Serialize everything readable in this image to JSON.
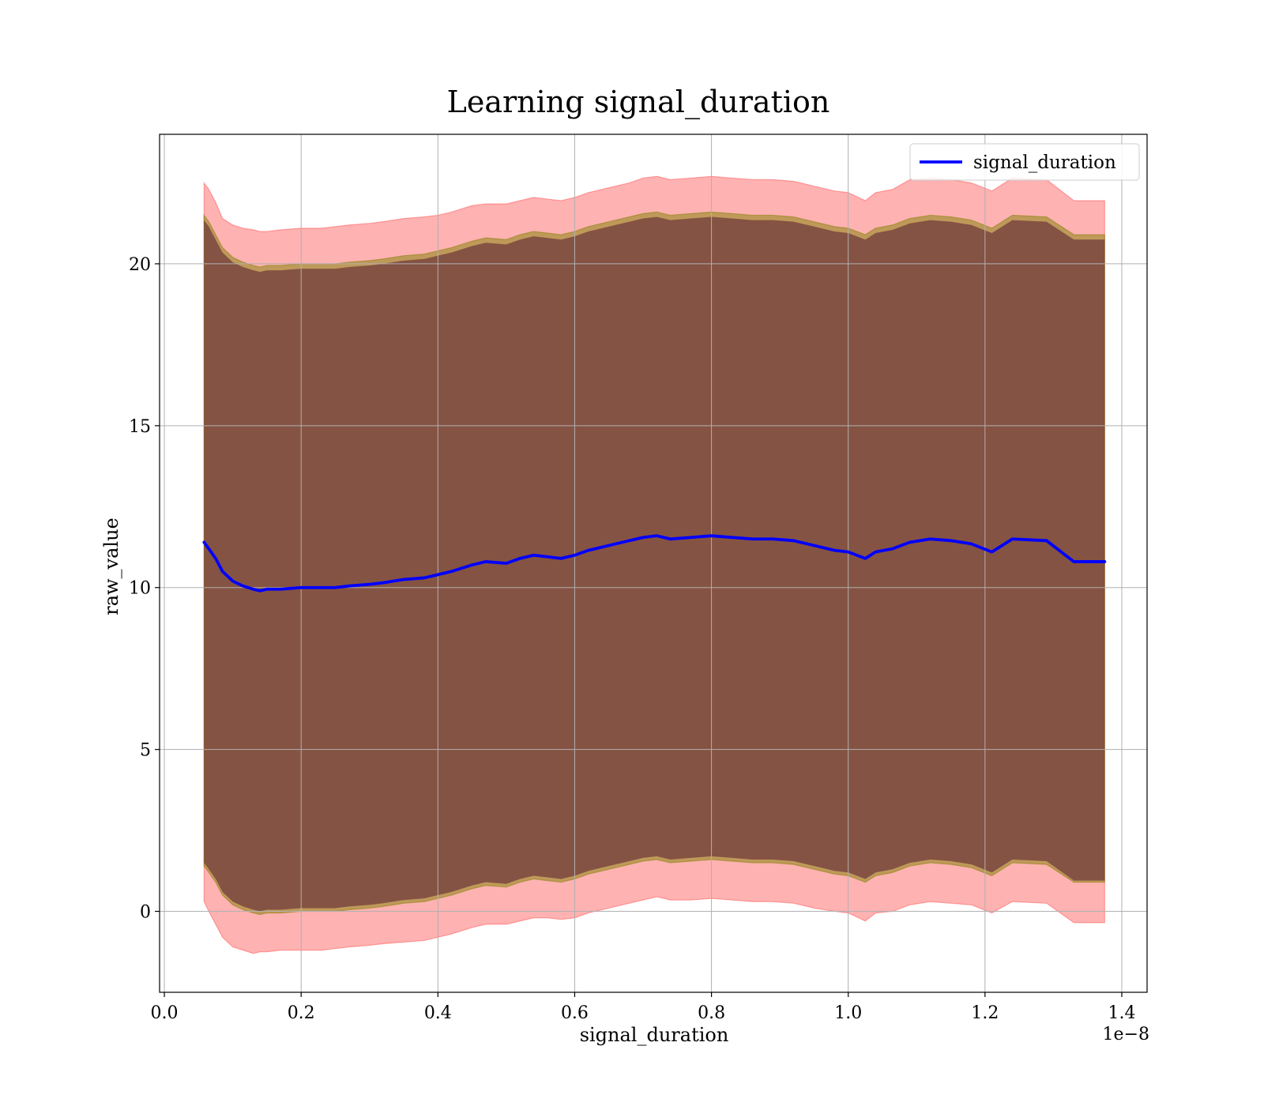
{
  "chart_data": {
    "type": "line",
    "title": "Learning signal_duration",
    "xlabel": "signal_duration",
    "ylabel": "raw_value",
    "x_offset_label": "1e−8",
    "xlim": [
      -0.007,
      1.437
    ],
    "ylim": [
      -2.5,
      24.0
    ],
    "x_ticks": [
      0.0,
      0.2,
      0.4,
      0.6,
      0.8,
      1.0,
      1.2,
      1.4
    ],
    "x_tick_labels": [
      "0.0",
      "0.2",
      "0.4",
      "0.6",
      "0.8",
      "1.0",
      "1.2",
      "1.4"
    ],
    "y_ticks": [
      0,
      5,
      10,
      15,
      20
    ],
    "y_tick_labels": [
      "0",
      "5",
      "10",
      "15",
      "20"
    ],
    "grid": true,
    "legend_position": "top-right",
    "colors": {
      "line": "#0000ff",
      "outer_band": "#ff0000",
      "middle_band": "#808000",
      "inner_band": "#4b0e2e",
      "grid": "#b0b0b0"
    },
    "series": [
      {
        "name": "signal_duration",
        "x": [
          0.058,
          0.065,
          0.075,
          0.085,
          0.1,
          0.115,
          0.13,
          0.14,
          0.15,
          0.17,
          0.2,
          0.23,
          0.25,
          0.27,
          0.3,
          0.32,
          0.35,
          0.38,
          0.4,
          0.42,
          0.45,
          0.47,
          0.5,
          0.52,
          0.54,
          0.56,
          0.58,
          0.6,
          0.62,
          0.65,
          0.68,
          0.7,
          0.72,
          0.74,
          0.77,
          0.8,
          0.83,
          0.86,
          0.89,
          0.92,
          0.95,
          0.98,
          1.0,
          1.025,
          1.04,
          1.065,
          1.09,
          1.12,
          1.15,
          1.18,
          1.21,
          1.24,
          1.29,
          1.33,
          1.375
        ],
        "mean": [
          11.4,
          11.2,
          10.9,
          10.5,
          10.2,
          10.05,
          9.95,
          9.9,
          9.95,
          9.95,
          10.0,
          10.0,
          10.0,
          10.05,
          10.1,
          10.15,
          10.25,
          10.3,
          10.4,
          10.5,
          10.7,
          10.8,
          10.75,
          10.9,
          11.0,
          10.95,
          10.9,
          11.0,
          11.15,
          11.3,
          11.45,
          11.55,
          11.6,
          11.5,
          11.55,
          11.6,
          11.55,
          11.5,
          11.5,
          11.45,
          11.3,
          11.15,
          11.1,
          10.9,
          11.1,
          11.2,
          11.4,
          11.5,
          11.45,
          11.35,
          11.1,
          11.5,
          11.45,
          10.8,
          10.8
        ],
        "outer_lower": [
          0.3,
          0.0,
          -0.4,
          -0.8,
          -1.1,
          -1.2,
          -1.3,
          -1.25,
          -1.25,
          -1.2,
          -1.2,
          -1.2,
          -1.15,
          -1.1,
          -1.05,
          -1.0,
          -0.95,
          -0.9,
          -0.8,
          -0.7,
          -0.5,
          -0.4,
          -0.4,
          -0.3,
          -0.2,
          -0.2,
          -0.25,
          -0.2,
          -0.05,
          0.1,
          0.25,
          0.35,
          0.45,
          0.35,
          0.35,
          0.4,
          0.35,
          0.3,
          0.3,
          0.25,
          0.1,
          0.0,
          -0.05,
          -0.3,
          -0.05,
          0.0,
          0.2,
          0.3,
          0.25,
          0.2,
          -0.05,
          0.3,
          0.25,
          -0.35,
          -0.35
        ],
        "outer_upper": [
          22.5,
          22.3,
          21.9,
          21.4,
          21.2,
          21.1,
          21.05,
          21.0,
          21.0,
          21.05,
          21.1,
          21.1,
          21.15,
          21.2,
          21.25,
          21.3,
          21.4,
          21.45,
          21.5,
          21.6,
          21.8,
          21.85,
          21.85,
          21.95,
          22.05,
          22.0,
          21.95,
          22.05,
          22.2,
          22.35,
          22.5,
          22.65,
          22.7,
          22.6,
          22.65,
          22.7,
          22.65,
          22.6,
          22.6,
          22.55,
          22.4,
          22.25,
          22.2,
          21.95,
          22.2,
          22.3,
          22.6,
          22.65,
          22.6,
          22.5,
          22.25,
          22.65,
          22.6,
          21.95,
          21.95
        ],
        "middle_lower": [
          1.4,
          1.2,
          0.9,
          0.5,
          0.2,
          0.05,
          -0.05,
          -0.1,
          -0.05,
          -0.05,
          0.0,
          0.0,
          0.0,
          0.05,
          0.1,
          0.15,
          0.25,
          0.3,
          0.4,
          0.5,
          0.7,
          0.8,
          0.75,
          0.9,
          1.0,
          0.95,
          0.9,
          1.0,
          1.15,
          1.3,
          1.45,
          1.55,
          1.6,
          1.5,
          1.55,
          1.6,
          1.55,
          1.5,
          1.5,
          1.45,
          1.3,
          1.15,
          1.1,
          0.9,
          1.1,
          1.2,
          1.4,
          1.5,
          1.45,
          1.35,
          1.1,
          1.5,
          1.45,
          0.9,
          0.9
        ],
        "middle_upper": [
          21.5,
          21.3,
          20.9,
          20.5,
          20.2,
          20.05,
          19.95,
          19.9,
          19.95,
          19.95,
          20.0,
          20.0,
          20.0,
          20.05,
          20.1,
          20.15,
          20.25,
          20.3,
          20.4,
          20.5,
          20.7,
          20.8,
          20.75,
          20.9,
          21.0,
          20.95,
          20.9,
          21.0,
          21.15,
          21.3,
          21.45,
          21.55,
          21.6,
          21.5,
          21.55,
          21.6,
          21.55,
          21.5,
          21.5,
          21.45,
          21.3,
          21.15,
          21.1,
          20.9,
          21.1,
          21.2,
          21.4,
          21.5,
          21.45,
          21.35,
          21.1,
          21.5,
          21.45,
          20.9,
          20.9
        ],
        "inner_lower": [
          1.5,
          1.3,
          1.0,
          0.6,
          0.3,
          0.15,
          0.05,
          0.0,
          0.05,
          0.05,
          0.1,
          0.1,
          0.1,
          0.15,
          0.2,
          0.25,
          0.35,
          0.4,
          0.5,
          0.6,
          0.8,
          0.9,
          0.85,
          1.0,
          1.1,
          1.05,
          1.0,
          1.1,
          1.25,
          1.4,
          1.55,
          1.65,
          1.7,
          1.6,
          1.65,
          1.7,
          1.65,
          1.6,
          1.6,
          1.55,
          1.4,
          1.25,
          1.2,
          1.0,
          1.2,
          1.3,
          1.5,
          1.6,
          1.55,
          1.45,
          1.2,
          1.6,
          1.55,
          0.95,
          0.95
        ],
        "inner_upper": [
          21.35,
          21.15,
          20.75,
          20.35,
          20.05,
          19.9,
          19.8,
          19.75,
          19.8,
          19.8,
          19.85,
          19.85,
          19.85,
          19.9,
          19.95,
          20.0,
          20.1,
          20.15,
          20.25,
          20.35,
          20.55,
          20.65,
          20.6,
          20.75,
          20.85,
          20.8,
          20.75,
          20.85,
          21.0,
          21.15,
          21.3,
          21.4,
          21.45,
          21.35,
          21.4,
          21.45,
          21.4,
          21.35,
          21.35,
          21.3,
          21.15,
          21.0,
          20.95,
          20.75,
          20.95,
          21.05,
          21.25,
          21.35,
          21.3,
          21.2,
          20.95,
          21.35,
          21.3,
          20.75,
          20.75
        ]
      }
    ]
  }
}
